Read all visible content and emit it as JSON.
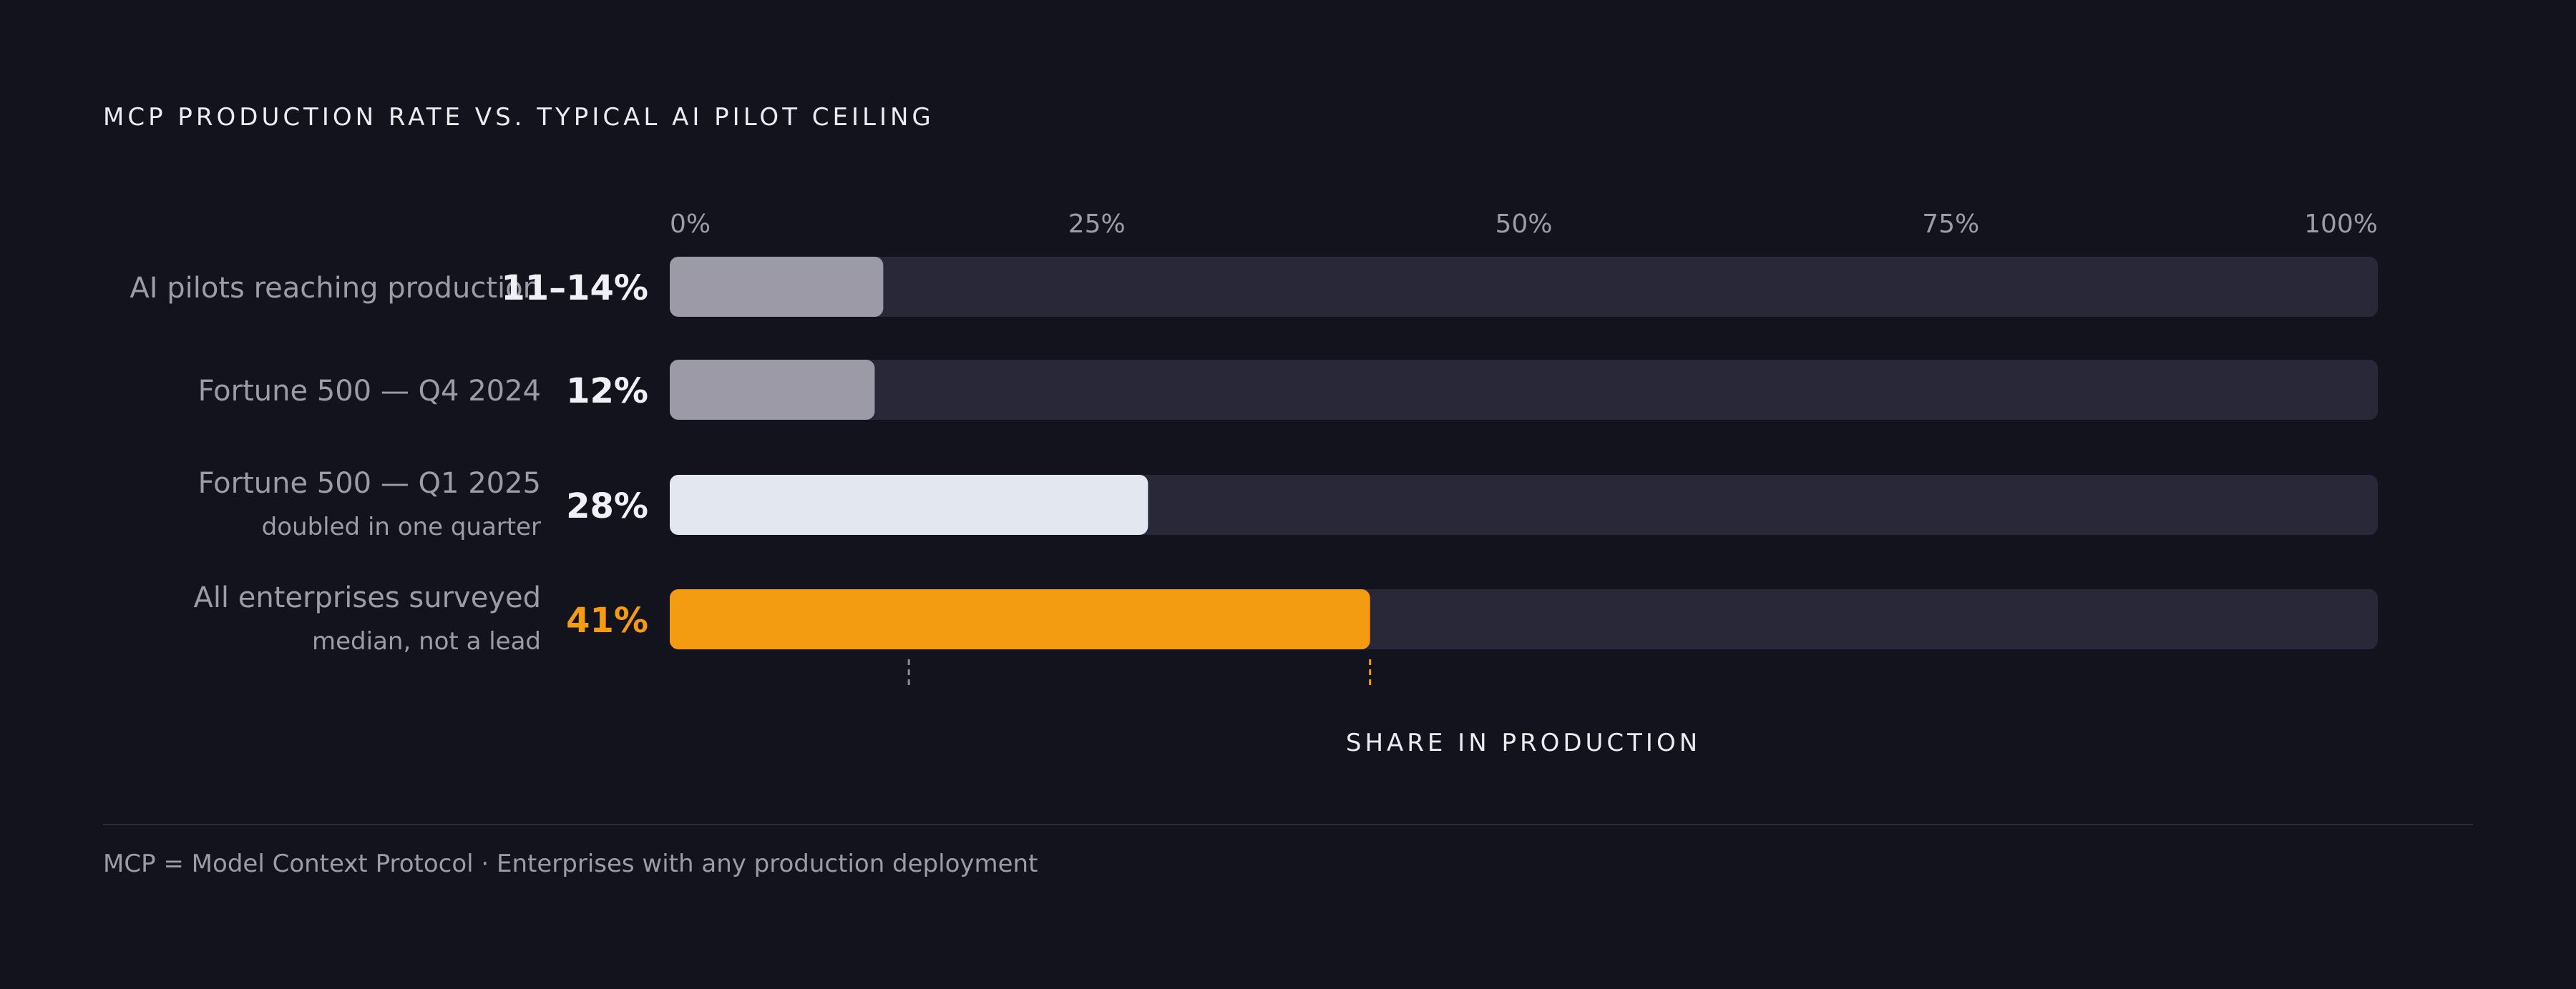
{
  "chart_title": "MCP PRODUCTION RATE VS. TYPICAL AI PILOT CEILING",
  "footnote": "MCP = Model Context Protocol · Enterprises with any production deployment",
  "colors": {
    "background": "#13131e",
    "track": "#292838",
    "bar_gray": "#9b9aa6",
    "bar_light": "#e2e7f0",
    "accent": "#f39c12",
    "label": "#9d9ca6",
    "value": "#f1f0f6",
    "marker_gray": "#8d8c96"
  },
  "chart_data": {
    "type": "bar",
    "orientation": "horizontal",
    "xlabel": "SHARE IN PRODUCTION",
    "xlim": [
      0,
      100
    ],
    "x_ticks": [
      0,
      25,
      50,
      75,
      100
    ],
    "x_tick_labels": [
      "0%",
      "25%",
      "50%",
      "75%",
      "100%"
    ],
    "grid": false,
    "categories": [
      "AI pilots reaching production",
      "Fortune 500 — Q4 2024",
      "Fortune 500 — Q1 2025",
      "All enterprises surveyed"
    ],
    "sublabels": [
      "",
      "",
      "doubled in one quarter",
      "median, not a lead"
    ],
    "values": [
      12.5,
      12,
      28,
      41
    ],
    "value_labels": [
      "11–14%",
      "12%",
      "28%",
      "41%"
    ],
    "bar_styles": [
      "gray",
      "gray",
      "light",
      "accent"
    ],
    "reference_markers": [
      {
        "value": 14,
        "style": "gray"
      },
      {
        "value": 41,
        "style": "accent"
      }
    ]
  }
}
